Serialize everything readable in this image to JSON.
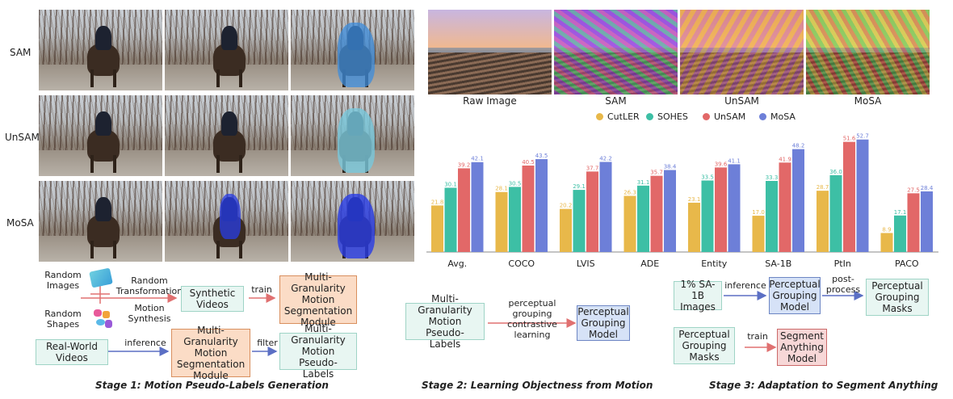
{
  "row_labels": [
    "SAM",
    "UnSAM",
    "MoSA"
  ],
  "scene_captions": [
    "Raw Image",
    "SAM",
    "UnSAM",
    "MoSA"
  ],
  "colors": {
    "CutLER": "#e8b84a",
    "SOHES": "#3dbfa5",
    "UnSAM": "#e26868",
    "MoSA": "#6d7fd8",
    "green_box": "#e8f6f2",
    "orange_box": "#fbdcc6",
    "blue_box": "#d6e2f7",
    "red_box": "#f7d7d7"
  },
  "chart_data": {
    "type": "bar",
    "categories": [
      "Avg.",
      "COCO",
      "LVIS",
      "ADE",
      "Entity",
      "SA-1B",
      "PtIn",
      "PACO"
    ],
    "series": [
      {
        "name": "CutLER",
        "values": [
          21.8,
          28.1,
          20.2,
          26.3,
          23.1,
          17.0,
          28.7,
          8.9
        ]
      },
      {
        "name": "SOHES",
        "values": [
          30.1,
          30.5,
          29.1,
          31.1,
          33.5,
          33.3,
          36.0,
          17.1
        ]
      },
      {
        "name": "UnSAM",
        "values": [
          39.2,
          40.5,
          37.7,
          35.7,
          39.6,
          41.9,
          51.6,
          27.5
        ]
      },
      {
        "name": "MoSA",
        "values": [
          42.1,
          43.5,
          42.2,
          38.4,
          41.1,
          48.2,
          52.7,
          28.4
        ]
      }
    ],
    "ylim": [
      0,
      56
    ],
    "grid": false,
    "legend": "top"
  },
  "stage1": {
    "random_images": "Random\nImages",
    "random_shapes": "Random\nShapes",
    "random_transformation": "Random\nTransformation",
    "motion_synthesis": "Motion\nSynthesis",
    "synthetic_videos": "Synthetic\nVideos",
    "train": "train",
    "mgms_module_top": "Multi-Granularity\nMotion\nSegmentation\nModule",
    "real_world_videos": "Real-World\nVideos",
    "inference": "inference",
    "mgms_module_bottom": "Multi-Granularity\nMotion\nSegmentation\nModule",
    "filter": "filter",
    "pseudo_labels": "Multi-Granularity\nMotion Pseudo-\nLabels",
    "title": "Stage 1: Motion Pseudo-Labels Generation"
  },
  "stage2": {
    "input": "Multi-Granularity\nMotion Pseudo-\nLabels",
    "arrow_label": "perceptual grouping\ncontrastive learning",
    "output": "Perceptual\nGrouping\nModel",
    "title": "Stage 2: Learning Objectness from Motion"
  },
  "stage3": {
    "sa1b": "1% SA-1B\nImages",
    "inference": "inference",
    "pgm": "Perceptual\nGrouping\nModel",
    "post_process": "post-\nprocess",
    "pg_masks_top": "Perceptual\nGrouping\nMasks",
    "pg_masks_bottom": "Perceptual\nGrouping\nMasks",
    "train": "train",
    "sam_model": "Segment\nAnything\nModel",
    "title": "Stage 3: Adaptation to Segment Anything"
  }
}
